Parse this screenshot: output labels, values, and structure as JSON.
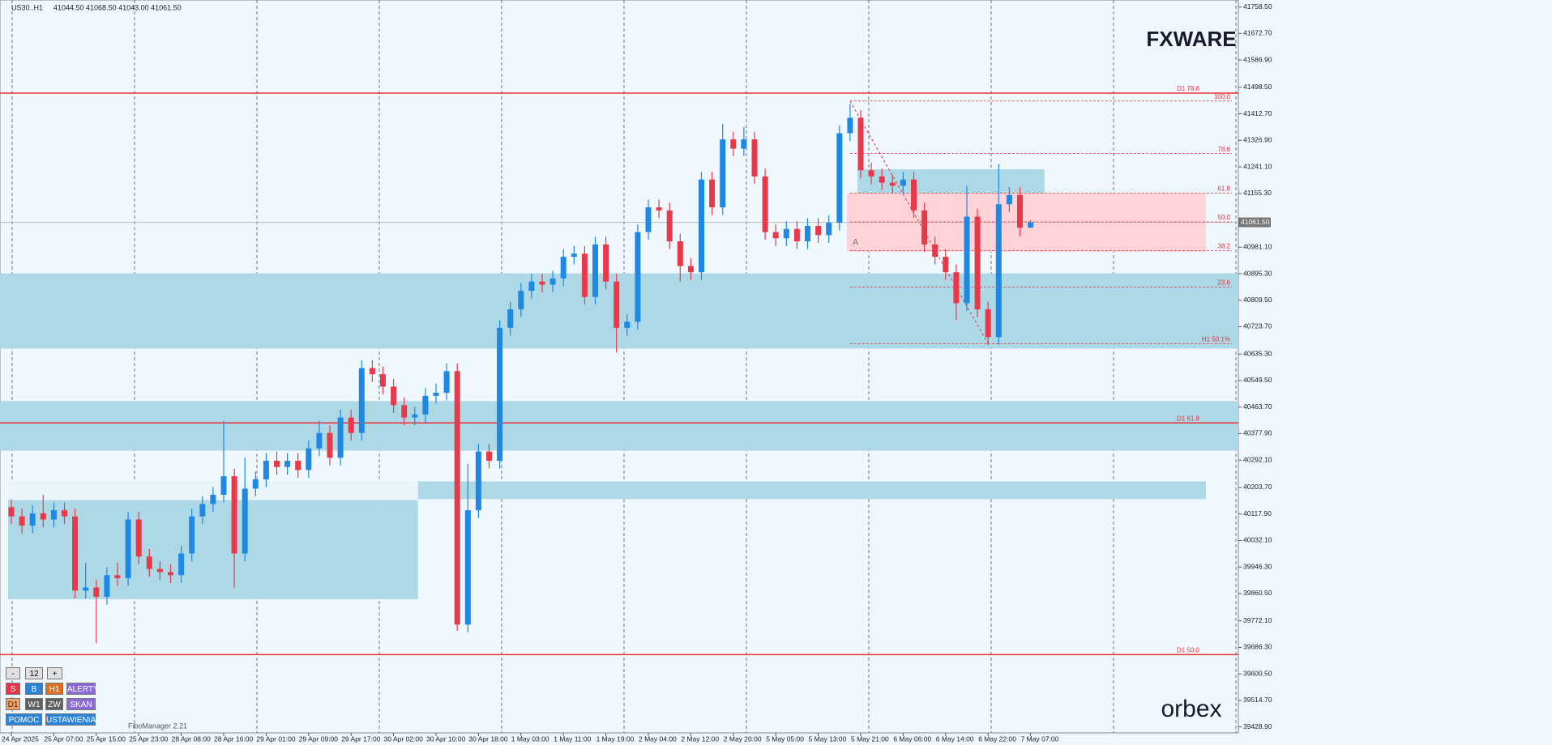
{
  "header": {
    "symbol": "US30..H1",
    "ohlc": "41044.50 41068.50 41043.00 41061.50"
  },
  "logo_top": "FXWARE",
  "logo_bottom": "orbex",
  "plugin": "FiboManager 2.21",
  "buttons": [
    [
      "-",
      "12",
      "+"
    ],
    [
      "S",
      "B",
      "H1",
      "ALERTY"
    ],
    [
      "D1",
      "W1",
      "ZW",
      "SKAN"
    ],
    [
      "POMOC",
      "USTAWIENIA"
    ]
  ],
  "chart_data": {
    "type": "candlestick",
    "categories": [
      "24 Apr 2025",
      null,
      null,
      null,
      "25 Apr 07:00",
      null,
      null,
      null,
      "25 Apr 15:00",
      null,
      null,
      null,
      "25 Apr 23:00",
      null,
      null,
      null,
      "28 Apr 08:00",
      null,
      null,
      null,
      "28 Apr 16:00",
      null,
      null,
      null,
      "29 Apr 01:00",
      null,
      null,
      null,
      "29 Apr 09:00",
      null,
      null,
      null,
      "29 Apr 17:00",
      null,
      null,
      null,
      "30 Apr 02:00",
      null,
      null,
      null,
      "30 Apr 10:00",
      null,
      null,
      null,
      "30 Apr 18:00",
      null,
      null,
      null,
      "1 May 03:00",
      null,
      null,
      null,
      "1 May 11:00",
      null,
      null,
      null,
      "1 May 19:00",
      null,
      null,
      null,
      "2 May 04:00",
      null,
      null,
      null,
      "2 May 12:00",
      null,
      null,
      null,
      "2 May 20:00",
      null,
      null,
      null,
      "5 May 05:00",
      null,
      null,
      null,
      "5 May 13:00",
      null,
      null,
      null,
      "5 May 21:00",
      null,
      null,
      null,
      "6 May 06:00",
      null,
      null,
      null,
      "6 May 14:00",
      null,
      null,
      null,
      "6 May 22:00",
      null,
      null,
      null,
      "7 May 07:00"
    ],
    "open": [
      40140,
      40110,
      40080,
      40120,
      40100,
      40130,
      40110,
      39870,
      39880,
      39850,
      39920,
      39910,
      40100,
      39980,
      39940,
      39930,
      39920,
      39990,
      40110,
      40150,
      40180,
      40240,
      39990,
      40200,
      40230,
      40290,
      40270,
      40290,
      40260,
      40330,
      40380,
      40300,
      40430,
      40380,
      40590,
      40570,
      40530,
      40470,
      40430,
      40440,
      40500,
      40510,
      40580,
      39760,
      40130,
      40320,
      40290,
      40720,
      40780,
      40840,
      40870,
      40860,
      40880,
      40950,
      40960,
      40820,
      40990,
      40870,
      40720,
      40740,
      41030,
      41110,
      41100,
      41000,
      40920,
      40900,
      41200,
      41110,
      41330,
      41300,
      41330,
      41210,
      41030,
      41010,
      41040,
      41000,
      41050,
      41020,
      41060,
      41350,
      41400,
      41230,
      41210,
      41190,
      41180,
      41200,
      41100,
      40990,
      40950,
      40900,
      40800,
      41080,
      40780,
      40690,
      41120,
      41150,
      41044.5
    ],
    "high": [
      40165,
      40135,
      40145,
      40180,
      40155,
      40155,
      40135,
      39960,
      39905,
      39945,
      39960,
      40125,
      40125,
      40005,
      39965,
      39955,
      40015,
      40135,
      40175,
      40205,
      40420,
      40265,
      40300,
      40255,
      40315,
      40320,
      40315,
      40315,
      40355,
      40420,
      40405,
      40455,
      40455,
      40615,
      40615,
      40595,
      40555,
      40495,
      40465,
      40525,
      40540,
      40605,
      40605,
      40280,
      40345,
      40345,
      40745,
      40805,
      40865,
      40895,
      40895,
      40905,
      40975,
      40985,
      40985,
      41015,
      41015,
      40895,
      40765,
      41055,
      41135,
      41135,
      41125,
      41025,
      40945,
      41225,
      41225,
      41380,
      41355,
      41370,
      41355,
      41235,
      41055,
      41065,
      41065,
      41075,
      41075,
      41085,
      41375,
      41445,
      41425,
      41255,
      41235,
      41215,
      41225,
      41225,
      41125,
      41015,
      40975,
      40925,
      41180,
      41105,
      40805,
      41250,
      41175,
      41175,
      41068.5
    ],
    "low": [
      40085,
      40055,
      40055,
      40075,
      40075,
      40085,
      39845,
      39845,
      39700,
      39825,
      39885,
      39885,
      39955,
      39915,
      39905,
      39895,
      39895,
      39965,
      40085,
      40125,
      40155,
      39880,
      39965,
      40175,
      40205,
      40245,
      40245,
      40235,
      40235,
      40305,
      40275,
      40275,
      40355,
      40355,
      40545,
      40505,
      40445,
      40405,
      40405,
      40415,
      40475,
      40485,
      39740,
      39735,
      40105,
      40265,
      40265,
      40695,
      40755,
      40815,
      40835,
      40835,
      40855,
      40925,
      40795,
      40795,
      40845,
      40640,
      40695,
      40715,
      41005,
      41075,
      40975,
      40870,
      40875,
      40875,
      41085,
      41085,
      41275,
      41275,
      41185,
      41005,
      40985,
      40985,
      40975,
      40975,
      40995,
      40995,
      41035,
      41325,
      41205,
      41185,
      41165,
      41155,
      41155,
      41075,
      40965,
      40925,
      40875,
      40745,
      40775,
      40755,
      40665,
      40665,
      41095,
      41015,
      41043
    ],
    "close": [
      40110,
      40080,
      40120,
      40100,
      40130,
      40110,
      39870,
      39880,
      39850,
      39920,
      39910,
      40100,
      39980,
      39940,
      39930,
      39920,
      39990,
      40110,
      40150,
      40180,
      40240,
      39990,
      40200,
      40230,
      40290,
      40270,
      40290,
      40260,
      40330,
      40380,
      40300,
      40430,
      40380,
      40590,
      40570,
      40530,
      40470,
      40430,
      40440,
      40500,
      40510,
      40580,
      39760,
      40130,
      40320,
      40290,
      40720,
      40780,
      40840,
      40870,
      40860,
      40880,
      40950,
      40960,
      40820,
      40990,
      40870,
      40720,
      40740,
      41030,
      41110,
      41100,
      41000,
      40920,
      40900,
      41200,
      41110,
      41330,
      41300,
      41330,
      41210,
      41030,
      41010,
      41040,
      41000,
      41050,
      41020,
      41060,
      41350,
      41400,
      41230,
      41210,
      41190,
      41180,
      41200,
      41100,
      40990,
      40950,
      40900,
      40800,
      41080,
      40780,
      40690,
      41120,
      41150,
      41044.5,
      41061.5
    ],
    "up_color": "#1e88e5",
    "down_color": "#e8394a",
    "ylim": [
      39409.7,
      41780.9
    ],
    "yticks": [
      {
        "value": 41758.5,
        "label": "41758.50"
      },
      {
        "value": 41672.7,
        "label": "41672.70"
      },
      {
        "value": 41586.9,
        "label": "41586.90"
      },
      {
        "value": 41498.5,
        "label": "41498.50"
      },
      {
        "value": 41412.7,
        "label": "41412.70"
      },
      {
        "value": 41326.9,
        "label": "41326.90"
      },
      {
        "value": 41241.1,
        "label": "41241.10"
      },
      {
        "value": 41155.3,
        "label": "41155.30"
      },
      {
        "value": 40981.1,
        "label": "40981.10"
      },
      {
        "value": 40895.3,
        "label": "40895.30"
      },
      {
        "value": 40809.5,
        "label": "40809.50"
      },
      {
        "value": 40723.7,
        "label": "40723.70"
      },
      {
        "value": 40635.3,
        "label": "40635.30"
      },
      {
        "value": 40549.5,
        "label": "40549.50"
      },
      {
        "value": 40463.7,
        "label": "40463.70"
      },
      {
        "value": 40377.9,
        "label": "40377.90"
      },
      {
        "value": 40292.1,
        "label": "40292.10"
      },
      {
        "value": 40203.7,
        "label": "40203.70"
      },
      {
        "value": 40117.9,
        "label": "40117.90"
      },
      {
        "value": 40032.1,
        "label": "40032.10"
      },
      {
        "value": 39946.3,
        "label": "39946.30"
      },
      {
        "value": 39860.5,
        "label": "39860.50"
      },
      {
        "value": 39772.1,
        "label": "39772.10"
      },
      {
        "value": 39686.3,
        "label": "39686.30"
      },
      {
        "value": 39600.5,
        "label": "39600.50"
      },
      {
        "value": 39514.7,
        "label": "39514.70"
      },
      {
        "value": 39428.9,
        "label": "39428.90"
      }
    ],
    "current_price": {
      "value": 41061.5,
      "label": "41061.50"
    },
    "zones": [
      {
        "top": 40896.5,
        "bottom": 40653,
        "color": "#add8e6"
      },
      {
        "top": 40483.2,
        "bottom": 40323,
        "color": "#add8e6"
      },
      {
        "top": 40223.6,
        "bottom": 40166,
        "color": "#add8e6",
        "from": 38
      },
      {
        "top": 40223.6,
        "bottom": 40162.7,
        "color": "#eaf5fb",
        "from": 0,
        "to": 38
      },
      {
        "top": 40162.7,
        "bottom": 39842.3,
        "color": "#add8e6",
        "from": 0,
        "to": 38
      },
      {
        "top": 41233,
        "bottom": 41153,
        "color": "#add8e6",
        "from": 80,
        "to": 97
      },
      {
        "top": 41156,
        "bottom": 40967,
        "color": "#ffd3d8",
        "from": 79
      }
    ],
    "levels": [
      {
        "label": "D1 78.6",
        "value": 41479.7
      },
      {
        "label": "D1 61.8",
        "value": 40412.7
      },
      {
        "label": "D1 50.0",
        "value": 39662.9
      }
    ],
    "fib_from": 79,
    "fib_marker": "A",
    "fib_levels": [
      {
        "label": "100.0",
        "value": 41454
      },
      {
        "label": "78.6",
        "value": 41284
      },
      {
        "label": "61.8",
        "value": 41156
      },
      {
        "label": "50.0",
        "value": 41063
      },
      {
        "label": "38.2",
        "value": 40970
      },
      {
        "label": "23.6",
        "value": 40852
      },
      {
        "label": "H1 50.1%",
        "value": 40669
      }
    ]
  }
}
